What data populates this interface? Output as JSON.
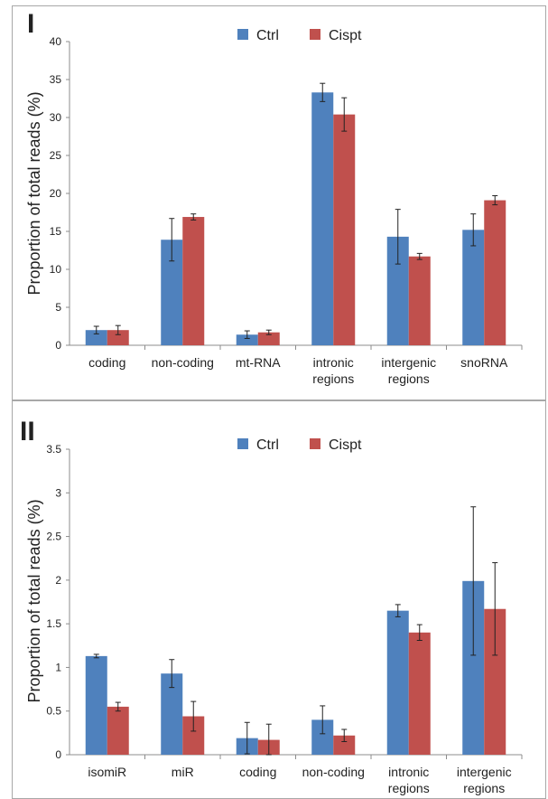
{
  "chart_data": [
    {
      "type": "bar",
      "panel_label": "I",
      "ylabel": "Proportion of total reads (%)",
      "ylim": [
        0,
        40
      ],
      "yticks": [
        "0",
        "5",
        "10",
        "15",
        "20",
        "25",
        "30",
        "35",
        "40"
      ],
      "categories": [
        [
          "coding"
        ],
        [
          "non-coding"
        ],
        [
          "mt-RNA"
        ],
        [
          "intronic",
          "regions"
        ],
        [
          "intergenic",
          "regions"
        ],
        [
          "snoRNA"
        ]
      ],
      "series": [
        {
          "name": "Ctrl",
          "color": "#4f81bd",
          "values": [
            2.0,
            13.9,
            1.4,
            33.3,
            14.3,
            15.2
          ],
          "errors": [
            0.5,
            2.8,
            0.5,
            1.2,
            3.6,
            2.1
          ]
        },
        {
          "name": "Cispt",
          "color": "#c0504d",
          "values": [
            2.0,
            16.9,
            1.7,
            30.4,
            11.7,
            19.1
          ],
          "errors": [
            0.6,
            0.4,
            0.3,
            2.2,
            0.4,
            0.6
          ]
        }
      ],
      "legend_position": "top-center",
      "grid": false
    },
    {
      "type": "bar",
      "panel_label": "II",
      "ylabel": "Proportion of total reads (%)",
      "ylim": [
        0,
        3.5
      ],
      "yticks": [
        "0",
        "0.5",
        "1",
        "1.5",
        "2",
        "2.5",
        "3",
        "3.5"
      ],
      "categories": [
        [
          "isomiR"
        ],
        [
          "miR"
        ],
        [
          "coding"
        ],
        [
          "non-coding"
        ],
        [
          "intronic",
          "regions"
        ],
        [
          "intergenic",
          "regions"
        ]
      ],
      "series": [
        {
          "name": "Ctrl",
          "color": "#4f81bd",
          "values": [
            1.13,
            0.93,
            0.19,
            0.4,
            1.65,
            1.99
          ],
          "errors": [
            0.02,
            0.16,
            0.18,
            0.16,
            0.07,
            0.85
          ]
        },
        {
          "name": "Cispt",
          "color": "#c0504d",
          "values": [
            0.55,
            0.44,
            0.17,
            0.22,
            1.4,
            1.67
          ],
          "errors": [
            0.05,
            0.17,
            0.18,
            0.07,
            0.09,
            0.53
          ]
        }
      ],
      "legend_position": "top-center",
      "grid": false
    }
  ]
}
